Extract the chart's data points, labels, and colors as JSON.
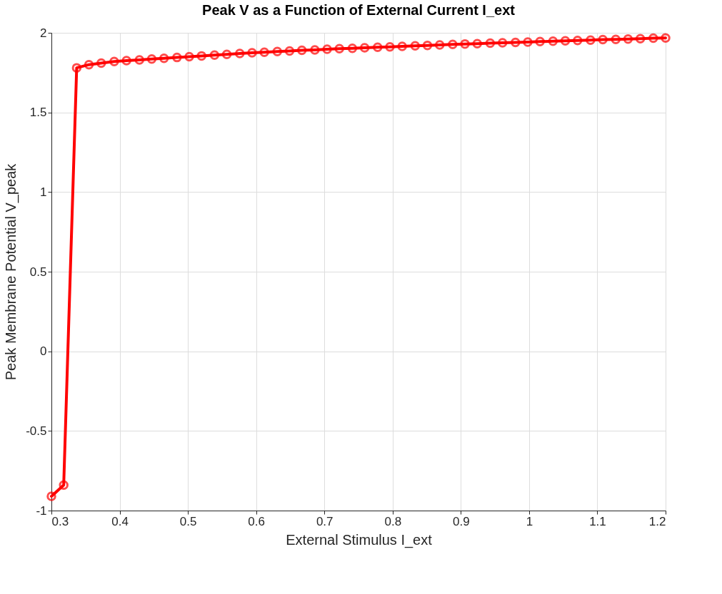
{
  "chart_data": {
    "type": "line",
    "title": "Peak V as a Function of External Current I_ext",
    "xlabel": "External Stimulus I_ext",
    "ylabel": "Peak Membrane Potential V_peak",
    "x": [
      0.3,
      0.318,
      0.337,
      0.355,
      0.373,
      0.392,
      0.41,
      0.429,
      0.447,
      0.465,
      0.484,
      0.502,
      0.52,
      0.539,
      0.557,
      0.576,
      0.594,
      0.612,
      0.631,
      0.649,
      0.667,
      0.686,
      0.704,
      0.722,
      0.741,
      0.759,
      0.778,
      0.796,
      0.814,
      0.833,
      0.851,
      0.869,
      0.888,
      0.906,
      0.924,
      0.943,
      0.961,
      0.98,
      0.998,
      1.016,
      1.035,
      1.053,
      1.071,
      1.09,
      1.108,
      1.127,
      1.145,
      1.163,
      1.182,
      1.2
    ],
    "series": [
      {
        "color": "#ff0000",
        "values": [
          -0.91,
          -0.84,
          1.78,
          1.8,
          1.81,
          1.82,
          1.825,
          1.83,
          1.835,
          1.84,
          1.845,
          1.85,
          1.855,
          1.86,
          1.865,
          1.87,
          1.875,
          1.878,
          1.882,
          1.886,
          1.89,
          1.893,
          1.897,
          1.9,
          1.903,
          1.906,
          1.909,
          1.912,
          1.915,
          1.918,
          1.921,
          1.924,
          1.927,
          1.93,
          1.932,
          1.935,
          1.937,
          1.94,
          1.942,
          1.945,
          1.947,
          1.95,
          1.952,
          1.954,
          1.957,
          1.959,
          1.961,
          1.963,
          1.966,
          1.968
        ]
      }
    ],
    "xlim": [
      0.3,
      1.2
    ],
    "xticks": [
      0.3,
      0.4,
      0.5,
      0.6,
      0.7,
      0.8,
      0.9,
      1,
      1.1,
      1.2
    ],
    "ylim": [
      -1,
      2
    ],
    "yticks": [
      -1,
      -0.5,
      0,
      0.5,
      1,
      1.5,
      2
    ],
    "grid": true,
    "marker": "circle",
    "line_style": "solid"
  }
}
